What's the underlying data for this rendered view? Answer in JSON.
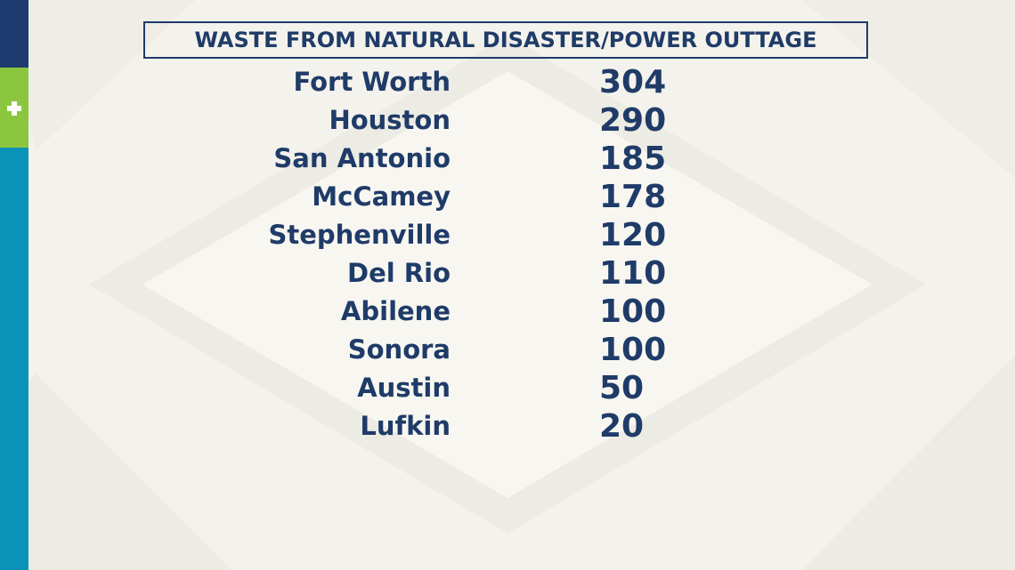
{
  "chart_data": {
    "type": "table",
    "title": "WASTE FROM NATURAL DISASTER/POWER OUTTAGE",
    "rows": [
      {
        "city": "Fort Worth",
        "value": "304"
      },
      {
        "city": "Houston",
        "value": "290"
      },
      {
        "city": "San Antonio",
        "value": "185"
      },
      {
        "city": "McCamey",
        "value": "178"
      },
      {
        "city": "Stephenville",
        "value": "120"
      },
      {
        "city": "Del Rio",
        "value": "110"
      },
      {
        "city": "Abilene",
        "value": "100"
      },
      {
        "city": "Sonora",
        "value": "100"
      },
      {
        "city": "Austin",
        "value": "50"
      },
      {
        "city": "Lufkin",
        "value": "20"
      }
    ]
  },
  "theme": {
    "text_color": "#1f3b68",
    "background": "#f4f2ec",
    "strip_navy": "#1e3a6e",
    "strip_green": "#8cc63f",
    "strip_teal": "#0a93b8"
  },
  "icons": {
    "side_icon": "plus-icon"
  }
}
